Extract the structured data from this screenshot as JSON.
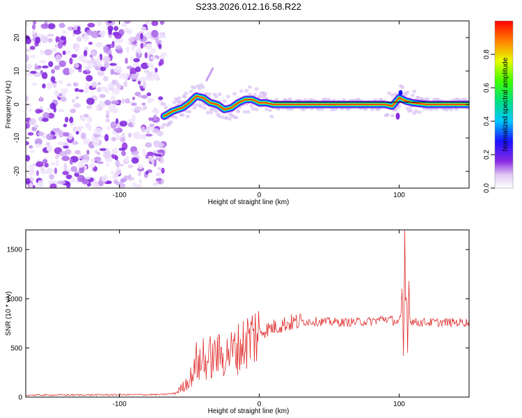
{
  "figure_title": "S233.2026.012.16.58.R22",
  "chart_data": [
    {
      "type": "heatmap",
      "title": "S233.2026.012.16.58.R22",
      "xlabel": "Height of straight line (km)",
      "ylabel": "Frequency (Hz)",
      "xlim": [
        -167,
        150
      ],
      "ylim": [
        -25,
        25
      ],
      "x_ticks": [
        -100,
        0,
        100
      ],
      "y_ticks": [
        -20,
        -10,
        0,
        10,
        20
      ],
      "colorbar": {
        "label": "Normalized spectral amplitude",
        "range": [
          0.0,
          1.0
        ],
        "ticks": [
          0.0,
          0.2,
          0.4,
          0.6,
          0.8
        ]
      },
      "noise_region_x": [
        -167,
        -68
      ],
      "ridge": {
        "description_values": "dominant frequency (Hz) vs height (km)",
        "x": [
          -68,
          -62,
          -55,
          -50,
          -45,
          -40,
          -35,
          -30,
          -25,
          -20,
          -15,
          -10,
          -5,
          0,
          5,
          10,
          30,
          60,
          80,
          90,
          95,
          100,
          105,
          110,
          120,
          150
        ],
        "y": [
          -3.5,
          -2.0,
          -1.0,
          0.5,
          2.5,
          2.0,
          0.5,
          0.0,
          -1.5,
          -1.0,
          0.5,
          1.5,
          1.5,
          0.5,
          0.5,
          0.0,
          0.0,
          0.0,
          0.0,
          0.0,
          -0.5,
          2.0,
          1.0,
          0.5,
          0.0,
          0.0
        ]
      }
    },
    {
      "type": "line",
      "xlabel": "Height of straight line (km)",
      "ylabel": "SNR (10 * v/v)",
      "xlim": [
        -167,
        150
      ],
      "ylim": [
        0,
        1700
      ],
      "x_ticks": [
        -100,
        0,
        100
      ],
      "y_ticks": [
        0,
        500,
        1000,
        1500
      ],
      "series": [
        {
          "name": "SNR",
          "color": "#e03030",
          "envelope_x": [
            -167,
            -70,
            -60,
            -55,
            -50,
            -45,
            -40,
            -35,
            -30,
            -25,
            -20,
            -15,
            -10,
            -5,
            0,
            10,
            20,
            30,
            40,
            60,
            80,
            90,
            95,
            100,
            103,
            105,
            108,
            112,
            120,
            150
          ],
          "envelope_y": [
            20,
            25,
            40,
            100,
            180,
            300,
            350,
            380,
            420,
            420,
            450,
            500,
            560,
            620,
            660,
            710,
            750,
            770,
            770,
            760,
            770,
            800,
            780,
            760,
            900,
            1000,
            780,
            760,
            760,
            760
          ],
          "spikes": [
            {
              "x": 104,
              "y": 1700
            },
            {
              "x": 102,
              "y": 1100
            },
            {
              "x": 107,
              "y": 1180
            },
            {
              "x": 103,
              "y": 420
            },
            {
              "x": 106,
              "y": 450
            },
            {
              "x": -45,
              "y": 560
            },
            {
              "x": -40,
              "y": 600
            },
            {
              "x": -35,
              "y": 620
            },
            {
              "x": -30,
              "y": 610
            },
            {
              "x": -22,
              "y": 490
            }
          ]
        }
      ]
    }
  ]
}
